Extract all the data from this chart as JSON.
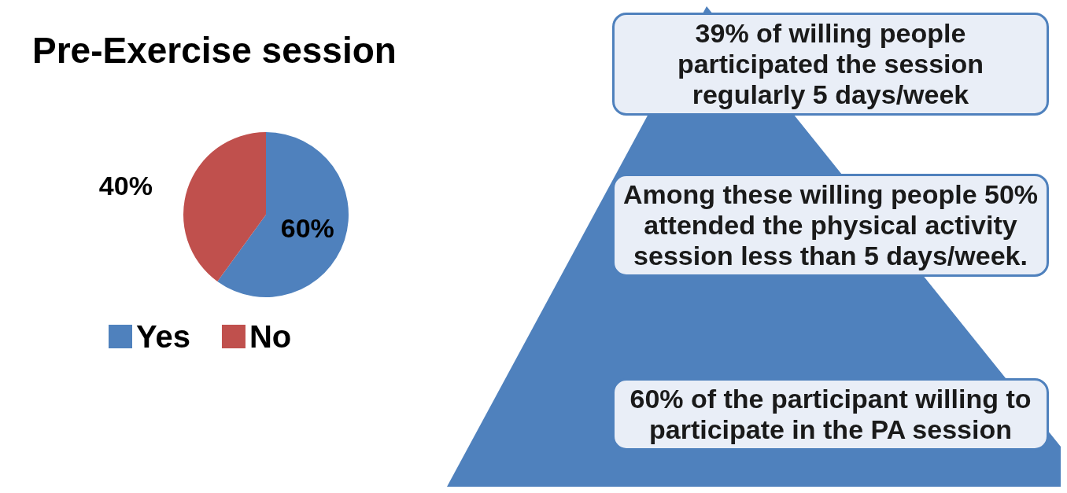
{
  "chart_data": [
    {
      "type": "pie",
      "title": "Pre-Exercise session",
      "categories": [
        "Yes",
        "No"
      ],
      "values": [
        60,
        40
      ],
      "colors": [
        "#4f81bd",
        "#c0504d"
      ],
      "value_labels": [
        "60%",
        "40%"
      ],
      "legend": "bottom"
    },
    {
      "type": "other",
      "annotations": [
        "39% of willing people participated the session regularly  5 days/week",
        "Among these willing people 50% attended the physical activity session less than 5 days/week.",
        "60% of the participant willing to participate in the PA session"
      ]
    }
  ]
}
